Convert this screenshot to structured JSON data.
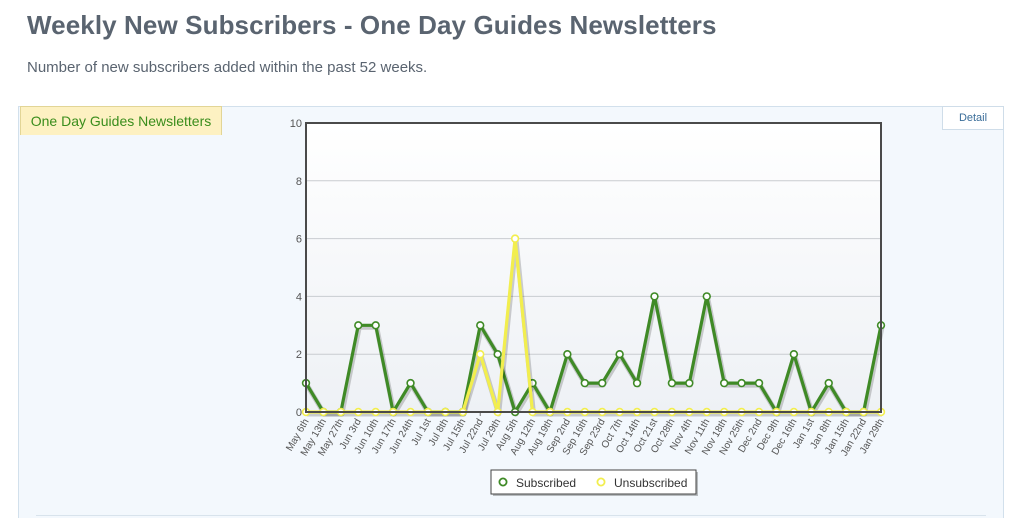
{
  "page": {
    "title": "Weekly New Subscribers - One Day Guides Newsletters",
    "subtitle": "Number of new subscribers added within the past 52 weeks."
  },
  "tabs": {
    "active_label": "One Day Guides Newsletters",
    "detail_label": "Detail"
  },
  "colors": {
    "subscribed": "#3f8a26",
    "unsubscribed": "#f2ee4e"
  },
  "chart_data": {
    "type": "line",
    "ylim": [
      0,
      10
    ],
    "yticks": [
      0,
      2,
      4,
      6,
      8,
      10
    ],
    "grid": true,
    "legend_position": "bottom-center",
    "categories": [
      "May 6th",
      "May 13th",
      "May 27th",
      "Jun 3rd",
      "Jun 10th",
      "Jun 17th",
      "Jun 24th",
      "Jul 1st",
      "Jul 8th",
      "Jul 15th",
      "Jul 22nd",
      "Jul 29th",
      "Aug 5th",
      "Aug 12th",
      "Aug 19th",
      "Sep 2nd",
      "Sep 16th",
      "Sep 23rd",
      "Oct 7th",
      "Oct 14th",
      "Oct 21st",
      "Oct 28th",
      "Nov 4th",
      "Nov 11th",
      "Nov 18th",
      "Nov 25th",
      "Dec 2nd",
      "Dec 9th",
      "Dec 16th",
      "Jan 1st",
      "Jan 8th",
      "Jan 15th",
      "Jan 22nd",
      "Jan 29th"
    ],
    "series": [
      {
        "name": "Subscribed",
        "values": [
          1,
          0,
          0,
          3,
          3,
          0,
          1,
          0,
          0,
          0,
          3,
          2,
          0,
          1,
          0,
          2,
          1,
          1,
          2,
          1,
          4,
          1,
          1,
          4,
          1,
          1,
          1,
          0,
          2,
          0,
          1,
          0,
          0,
          3
        ]
      },
      {
        "name": "Unsubscribed",
        "values": [
          0,
          0,
          0,
          0,
          0,
          0,
          0,
          0,
          0,
          0,
          2,
          0,
          6,
          0,
          0,
          0,
          0,
          0,
          0,
          0,
          0,
          0,
          0,
          0,
          0,
          0,
          0,
          0,
          0,
          0,
          0,
          0,
          0,
          0
        ]
      }
    ]
  }
}
